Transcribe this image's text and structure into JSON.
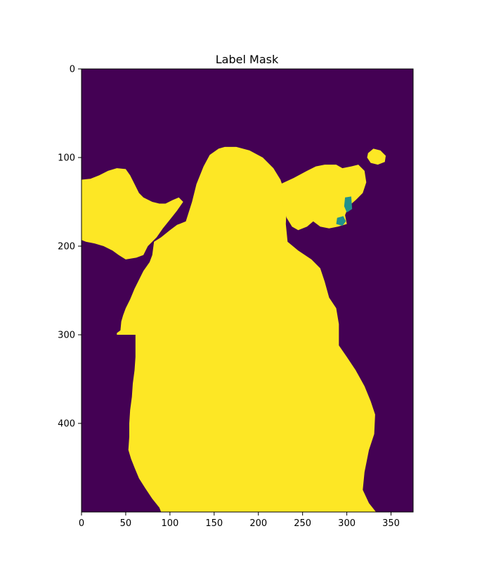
{
  "chart_data": {
    "type": "heatmap",
    "title": "Label Mask",
    "xlabel": "",
    "ylabel": "",
    "xlim": [
      0,
      375
    ],
    "ylim": [
      500,
      0
    ],
    "xticks": [
      0,
      50,
      100,
      150,
      200,
      250,
      300,
      350
    ],
    "xtick_labels": [
      "0",
      "50",
      "100",
      "150",
      "200",
      "250",
      "300",
      "350"
    ],
    "yticks": [
      0,
      100,
      200,
      300,
      400
    ],
    "ytick_labels": [
      "0",
      "100",
      "200",
      "300",
      "400"
    ],
    "grid": false,
    "colormap": "viridis",
    "classes": [
      {
        "label": 0,
        "color": "#440154"
      },
      {
        "label": 1,
        "color": "#21918c"
      },
      {
        "label": 2,
        "color": "#fde725"
      }
    ],
    "regions": [
      {
        "class": 2,
        "polygon": [
          [
            90,
            500
          ],
          [
            88,
            495
          ],
          [
            80,
            485
          ],
          [
            72,
            473
          ],
          [
            65,
            462
          ],
          [
            60,
            450
          ],
          [
            56,
            440
          ],
          [
            53,
            430
          ],
          [
            54,
            415
          ],
          [
            54,
            400
          ],
          [
            55,
            385
          ],
          [
            57,
            370
          ],
          [
            58,
            355
          ],
          [
            60,
            340
          ],
          [
            61,
            325
          ],
          [
            61,
            300
          ],
          [
            54,
            300
          ],
          [
            46,
            300
          ],
          [
            40,
            300
          ],
          [
            40,
            298
          ],
          [
            44,
            295
          ],
          [
            45,
            285
          ],
          [
            47,
            278
          ],
          [
            50,
            270
          ],
          [
            55,
            260
          ],
          [
            60,
            248
          ],
          [
            65,
            238
          ],
          [
            70,
            228
          ],
          [
            77,
            218
          ],
          [
            80,
            210
          ],
          [
            82,
            195
          ],
          [
            90,
            190
          ],
          [
            100,
            182
          ],
          [
            108,
            176
          ],
          [
            118,
            172
          ],
          [
            125,
            150
          ],
          [
            130,
            130
          ],
          [
            138,
            110
          ],
          [
            145,
            97
          ],
          [
            155,
            90
          ],
          [
            162,
            88
          ],
          [
            175,
            88
          ],
          [
            190,
            92
          ],
          [
            205,
            100
          ],
          [
            217,
            112
          ],
          [
            225,
            125
          ],
          [
            230,
            140
          ],
          [
            232,
            155
          ],
          [
            231,
            175
          ],
          [
            233,
            195
          ],
          [
            245,
            205
          ],
          [
            260,
            215
          ],
          [
            270,
            225
          ],
          [
            275,
            240
          ],
          [
            280,
            258
          ],
          [
            288,
            270
          ],
          [
            291,
            288
          ],
          [
            291,
            312
          ],
          [
            300,
            325
          ],
          [
            310,
            340
          ],
          [
            320,
            358
          ],
          [
            327,
            375
          ],
          [
            332,
            390
          ],
          [
            331,
            412
          ],
          [
            325,
            430
          ],
          [
            320,
            455
          ],
          [
            318,
            475
          ],
          [
            325,
            490
          ],
          [
            333,
            500
          ]
        ]
      },
      {
        "class": 2,
        "polygon": [
          [
            0,
            125
          ],
          [
            10,
            124
          ],
          [
            20,
            120
          ],
          [
            30,
            115
          ],
          [
            40,
            112
          ],
          [
            50,
            113
          ],
          [
            55,
            120
          ],
          [
            60,
            130
          ],
          [
            65,
            140
          ],
          [
            70,
            145
          ],
          [
            80,
            150
          ],
          [
            88,
            152
          ],
          [
            95,
            152
          ],
          [
            103,
            148
          ],
          [
            110,
            145
          ],
          [
            115,
            150
          ],
          [
            108,
            160
          ],
          [
            100,
            170
          ],
          [
            92,
            180
          ],
          [
            85,
            190
          ],
          [
            75,
            200
          ],
          [
            70,
            210
          ],
          [
            62,
            213
          ],
          [
            50,
            215
          ],
          [
            42,
            210
          ],
          [
            35,
            205
          ],
          [
            25,
            200
          ],
          [
            15,
            197
          ],
          [
            5,
            195
          ],
          [
            0,
            193
          ]
        ]
      },
      {
        "class": 2,
        "polygon": [
          [
            225,
            130
          ],
          [
            240,
            123
          ],
          [
            255,
            115
          ],
          [
            265,
            110
          ],
          [
            275,
            108
          ],
          [
            288,
            108
          ],
          [
            295,
            112
          ],
          [
            305,
            110
          ],
          [
            313,
            108
          ],
          [
            320,
            115
          ],
          [
            322,
            128
          ],
          [
            318,
            140
          ],
          [
            310,
            148
          ],
          [
            302,
            155
          ],
          [
            298,
            165
          ],
          [
            300,
            175
          ],
          [
            290,
            178
          ],
          [
            280,
            180
          ],
          [
            270,
            178
          ],
          [
            262,
            172
          ],
          [
            255,
            178
          ],
          [
            245,
            182
          ],
          [
            238,
            178
          ],
          [
            232,
            168
          ],
          [
            228,
            155
          ]
        ]
      },
      {
        "class": 2,
        "polygon": [
          [
            324,
            95
          ],
          [
            330,
            90
          ],
          [
            338,
            92
          ],
          [
            344,
            98
          ],
          [
            343,
            105
          ],
          [
            335,
            108
          ],
          [
            327,
            106
          ],
          [
            323,
            100
          ]
        ]
      },
      {
        "class": 1,
        "polygon": [
          [
            298,
            145
          ],
          [
            305,
            144
          ],
          [
            306,
            158
          ],
          [
            300,
            162
          ],
          [
            297,
            155
          ]
        ]
      },
      {
        "class": 1,
        "polygon": [
          [
            289,
            168
          ],
          [
            296,
            166
          ],
          [
            299,
            172
          ],
          [
            295,
            177
          ],
          [
            288,
            175
          ]
        ]
      }
    ]
  }
}
